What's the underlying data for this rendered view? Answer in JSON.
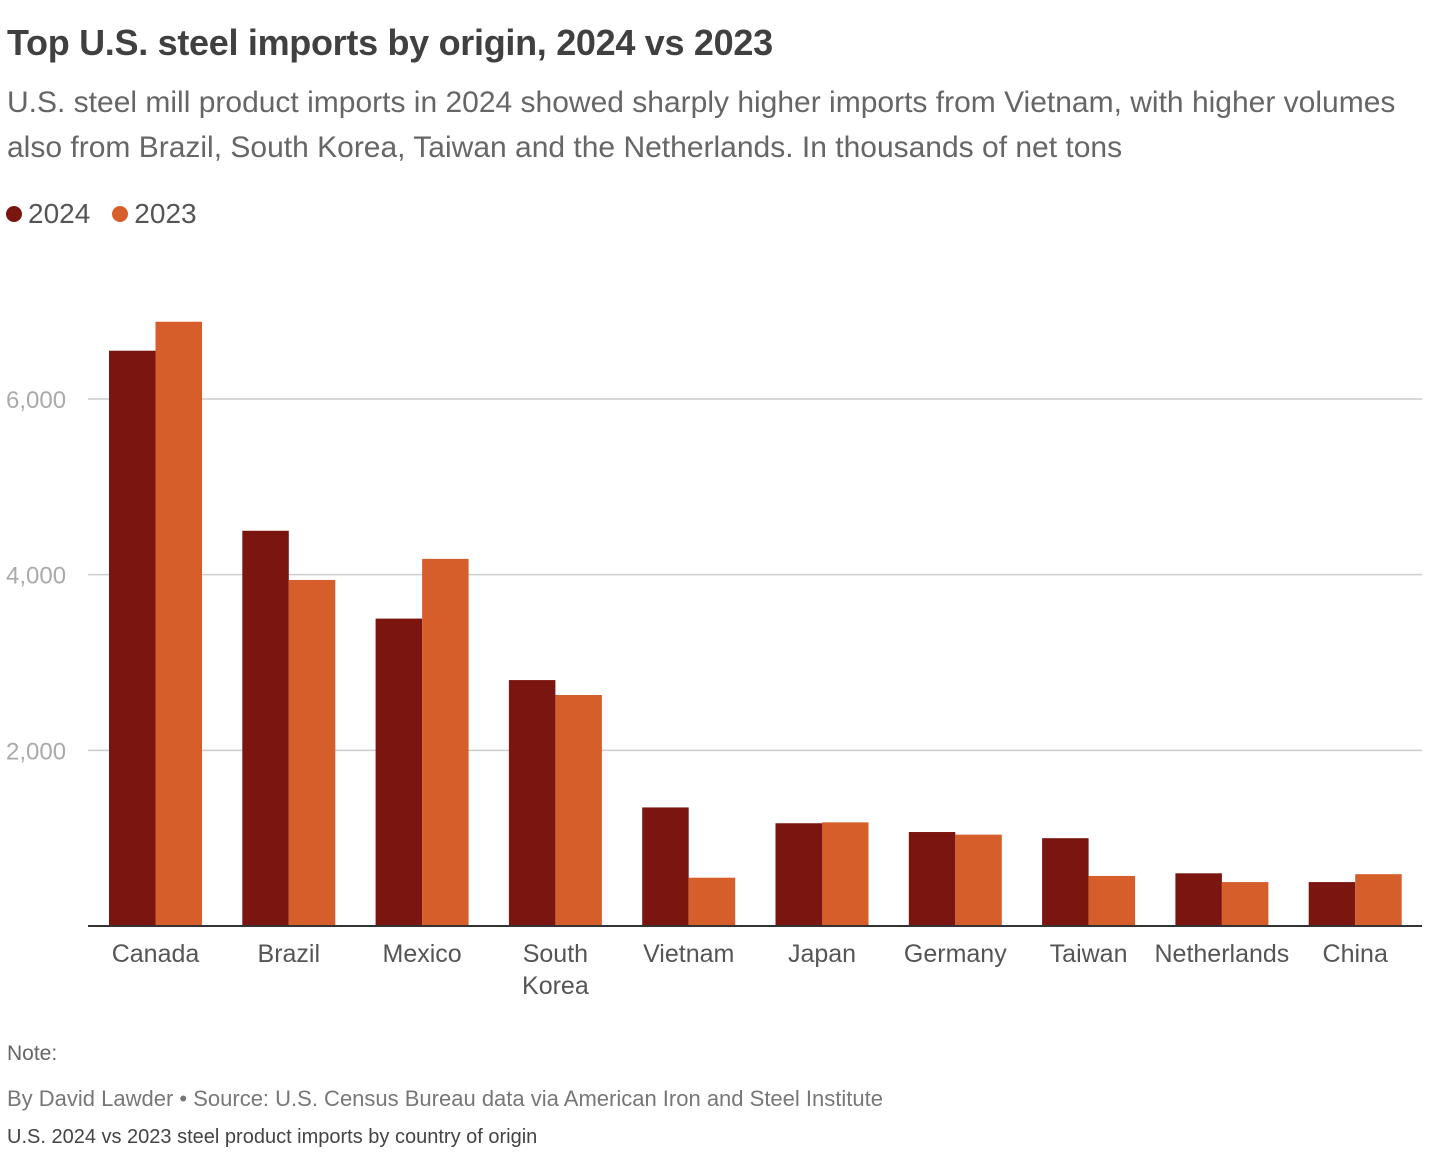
{
  "header": {
    "title": "Top U.S. steel imports by origin, 2024 vs 2023",
    "subtitle": "U.S. steel mill product imports in 2024 showed sharply higher imports from Vietnam, with higher volumes also from Brazil, South Korea, Taiwan and the Netherlands. In thousands of net tons"
  },
  "legend": [
    {
      "label": "2024",
      "color": "#7b1510"
    },
    {
      "label": "2023",
      "color": "#d55e2a"
    }
  ],
  "chart_data": {
    "type": "bar",
    "categories": [
      [
        "Canada"
      ],
      [
        "Brazil"
      ],
      [
        "Mexico"
      ],
      [
        "South",
        "Korea"
      ],
      [
        "Vietnam"
      ],
      [
        "Japan"
      ],
      [
        "Germany"
      ],
      [
        "Taiwan"
      ],
      [
        "Netherlands"
      ],
      [
        "China"
      ]
    ],
    "series": [
      {
        "name": "2024",
        "color": "#7b1510",
        "values": [
          6550,
          4500,
          3500,
          2800,
          1350,
          1170,
          1070,
          1000,
          600,
          500
        ]
      },
      {
        "name": "2023",
        "color": "#d55e2a",
        "values": [
          6880,
          3940,
          4180,
          2630,
          550,
          1180,
          1040,
          570,
          500,
          590
        ]
      }
    ],
    "yticks": [
      2000,
      4000,
      6000
    ],
    "ytick_labels": [
      "2,000",
      "4,000",
      "6,000"
    ],
    "ylim": [
      0,
      7200
    ],
    "grid": true,
    "xlabel": "",
    "ylabel": ""
  },
  "footer": {
    "note": "Note:",
    "source": "By David Lawder • Source: U.S. Census Bureau data via American Iron and Steel Institute",
    "caption": "U.S. 2024 vs 2023 steel product imports by country of origin"
  }
}
